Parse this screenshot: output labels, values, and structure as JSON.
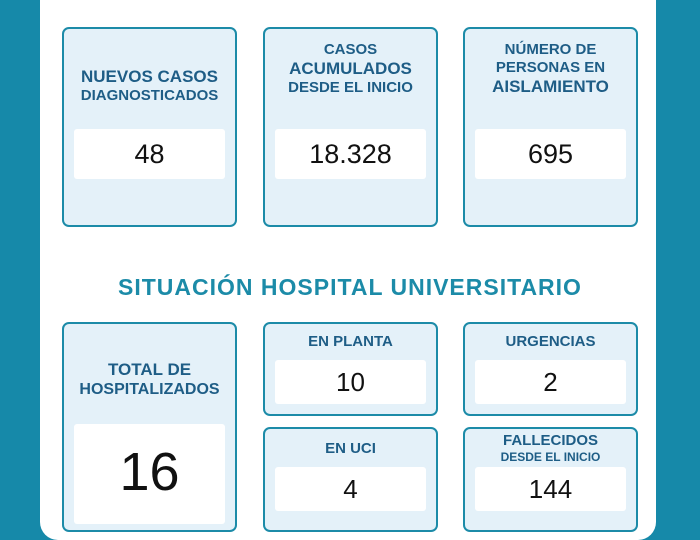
{
  "top_cards": [
    {
      "lines": [
        {
          "text": "NUEVOS CASOS",
          "size": "lg"
        },
        {
          "text": "DIAGNOSTICADOS",
          "size": "sm"
        }
      ],
      "value": "48"
    },
    {
      "lines": [
        {
          "text": "CASOS",
          "size": "sm"
        },
        {
          "text": "ACUMULADOS",
          "size": "lg"
        },
        {
          "text": "DESDE EL INICIO",
          "size": "sm"
        }
      ],
      "value": "18.328"
    },
    {
      "lines": [
        {
          "text": "NÚMERO DE",
          "size": "sm"
        },
        {
          "text": "PERSONAS EN",
          "size": "sm"
        },
        {
          "text": "AISLAMIENTO",
          "size": "lg"
        }
      ],
      "value": "695"
    }
  ],
  "hospital": {
    "title": "SITUACIÓN HOSPITAL UNIVERSITARIO",
    "total_line1": "TOTAL DE",
    "total_line2": "HOSPITALIZADOS",
    "total_value": "16",
    "planta_label": "EN PLANTA",
    "planta_value": "10",
    "urgencias_label": "URGENCIAS",
    "urgencias_value": "2",
    "uci_label": "EN UCI",
    "uci_value": "4",
    "fallecidos_line1": "FALLECIDOS",
    "fallecidos_line2": "DESDE EL INICIO",
    "fallecidos_value": "144"
  },
  "colors": {
    "accent": "#1c8ba8",
    "heading": "#1e5d86",
    "card_bg": "#e4f1f9",
    "page_bg": "#1689a9"
  }
}
